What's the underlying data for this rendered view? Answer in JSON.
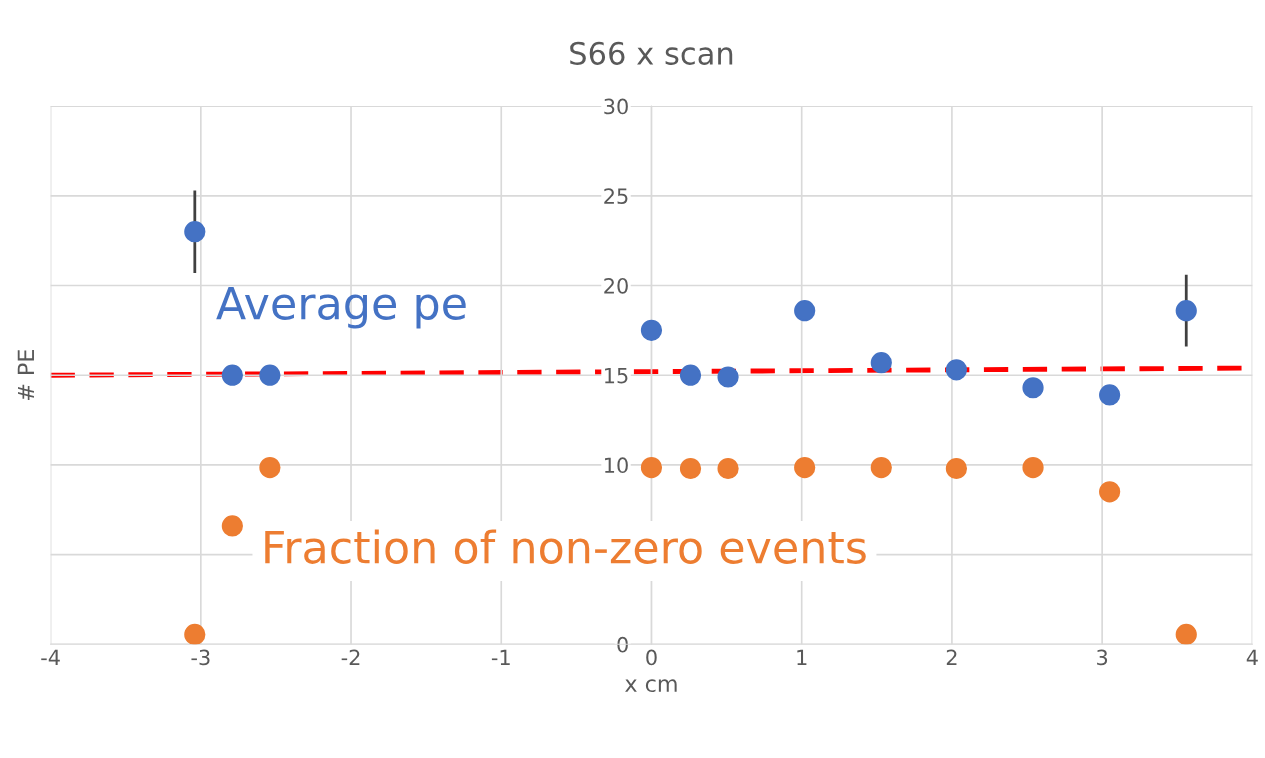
{
  "chart_data": {
    "type": "scatter",
    "title": "S66 x scan",
    "xlabel": "x cm",
    "ylabel": "# PE",
    "xlim": [
      -4,
      4
    ],
    "xticks": [
      -4,
      -3,
      -2,
      -1,
      0,
      1,
      2,
      3,
      4
    ],
    "ylim": [
      0,
      30
    ],
    "yticks": [
      0,
      {
        "value": 5,
        "label": null
      },
      10,
      15,
      20,
      25,
      30
    ],
    "grid": true,
    "legend": false,
    "marker": "circle",
    "series": [
      {
        "name": "Average pe",
        "color": "#4472c4",
        "x": [
          -3.04,
          -2.79,
          -2.54,
          0,
          0.26,
          0.51,
          1.02,
          1.53,
          2.03,
          2.54,
          3.05,
          3.56
        ],
        "values": [
          23,
          15.0,
          15.0,
          17.5,
          15.0,
          14.9,
          18.6,
          15.7,
          15.3,
          14.3,
          13.9,
          18.6
        ],
        "errors": [
          2.3,
          null,
          null,
          null,
          null,
          null,
          null,
          null,
          null,
          null,
          null,
          2
        ]
      },
      {
        "name": "Fraction of non-zero events",
        "color": "#ed7d31",
        "x": [
          -3.04,
          -2.79,
          -2.54,
          0,
          0.26,
          0.51,
          1.02,
          1.53,
          2.03,
          2.54,
          3.05,
          3.56
        ],
        "values": [
          0.55,
          6.6,
          9.85,
          9.85,
          9.8,
          9.8,
          9.85,
          9.85,
          9.8,
          9.85,
          8.5,
          0.55
        ]
      },
      {
        "type": "line",
        "color": "#ff0000",
        "line_style": "dashed",
        "marker": "none",
        "x": [
          -4,
          4
        ],
        "values": [
          15.0,
          15.4
        ]
      }
    ]
  }
}
